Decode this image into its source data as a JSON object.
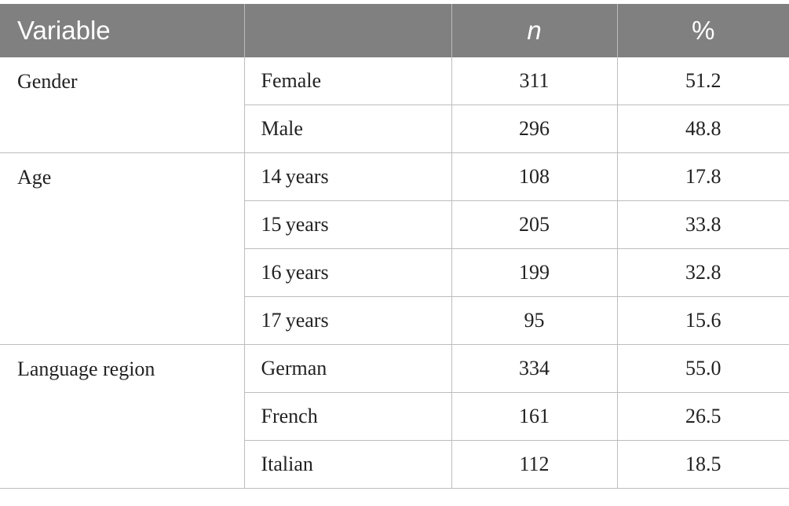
{
  "table": {
    "headers": {
      "variable": "Variable",
      "category": "",
      "n": "n",
      "percent": "%"
    },
    "groups": [
      {
        "name": "Gender",
        "rows": [
          {
            "label": "Female",
            "n": "311",
            "pct": "51.2"
          },
          {
            "label": "Male",
            "n": "296",
            "pct": "48.8"
          }
        ]
      },
      {
        "name": "Age",
        "rows": [
          {
            "label": "14 years",
            "n": "108",
            "pct": "17.8"
          },
          {
            "label": "15 years",
            "n": "205",
            "pct": "33.8"
          },
          {
            "label": "16 years",
            "n": "199",
            "pct": "32.8"
          },
          {
            "label": "17 years",
            "n": "95",
            "pct": "15.6"
          }
        ]
      },
      {
        "name": "Language region",
        "rows": [
          {
            "label": "German",
            "n": "334",
            "pct": "55.0"
          },
          {
            "label": "French",
            "n": "161",
            "pct": "26.5"
          },
          {
            "label": "Italian",
            "n": "112",
            "pct": "18.5"
          }
        ]
      }
    ]
  }
}
